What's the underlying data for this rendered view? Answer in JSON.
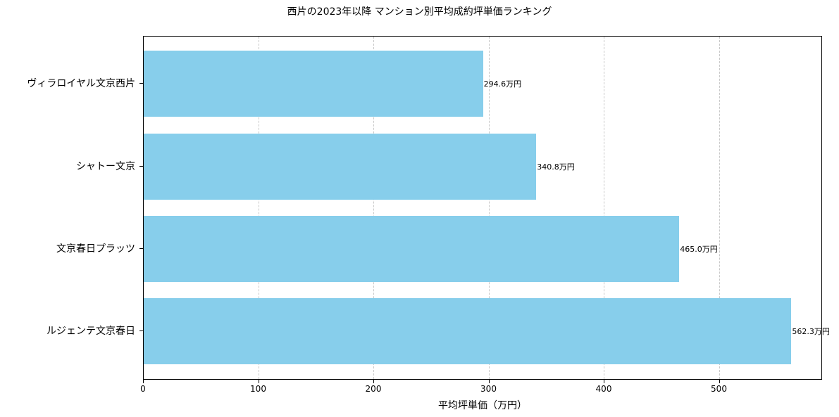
{
  "chart_data": {
    "type": "bar",
    "orientation": "horizontal",
    "title": "西片の2023年以降 マンション別平均成約坪単価ランキング",
    "xlabel": "平均坪単価（万円）",
    "ylabel": "",
    "categories": [
      "ヴィラロイヤル文京西片",
      "シャトー文京",
      "文京春日プラッツ",
      "ルジェンテ文京春日"
    ],
    "values": [
      294.6,
      340.8,
      465.0,
      562.3
    ],
    "value_labels": [
      "294.6万円",
      "340.8万円",
      "465.0万円",
      "562.3万円"
    ],
    "xlim": [
      0,
      590
    ],
    "xticks": [
      0,
      100,
      200,
      300,
      400,
      500
    ],
    "xtick_labels": [
      "0",
      "100",
      "200",
      "300",
      "400",
      "500"
    ],
    "grid": {
      "x": true,
      "y": false,
      "style": "dashed"
    },
    "bar_color": "#87ceeb",
    "legend": null
  }
}
